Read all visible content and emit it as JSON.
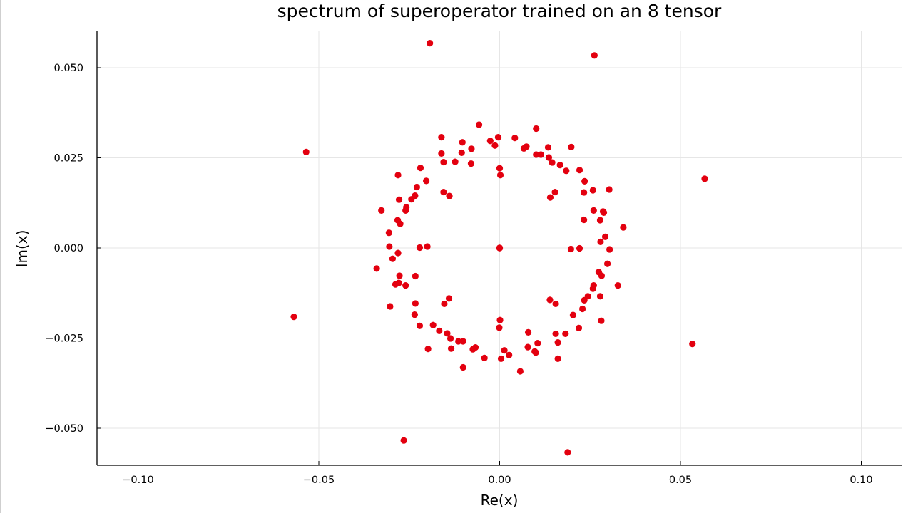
{
  "chart_data": {
    "type": "scatter",
    "title": "spectrum of superoperator trained on an 8 tensor",
    "xlabel": "Re(x)",
    "ylabel": "Im(x)",
    "xlim": [
      -0.1117,
      0.1117
    ],
    "ylim": [
      -0.0603,
      0.0603
    ],
    "x_ticks": [
      -0.1,
      -0.05,
      0.0,
      0.05,
      0.1
    ],
    "x_tick_labels": [
      "−0.10",
      "−0.05",
      "0.00",
      "0.05",
      "0.10"
    ],
    "y_ticks": [
      -0.05,
      -0.025,
      0.0,
      0.025,
      0.05
    ],
    "y_tick_labels": [
      "−0.050",
      "−0.025",
      "0.000",
      "0.025",
      "0.050"
    ],
    "grid": true,
    "legend": "none",
    "marker_color": "#e3000f",
    "series": [
      {
        "points": [
          [
            -0.0193,
            0.0568
          ],
          [
            0.0262,
            0.0534
          ],
          [
            0.0567,
            0.0192
          ],
          [
            -0.0535,
            0.0266
          ],
          [
            0.0533,
            -0.0266
          ],
          [
            -0.0569,
            -0.0191
          ],
          [
            -0.0265,
            -0.0534
          ],
          [
            0.0188,
            -0.0567
          ],
          [
            0.0,
            0.0
          ],
          [
            0.0,
            0.0
          ],
          [
            0.0,
            0.0
          ],
          [
            0.0,
            0.0
          ],
          [
            -0.0057,
            0.0342
          ],
          [
            0.0101,
            0.0331
          ],
          [
            0.0042,
            0.0305
          ],
          [
            -0.0004,
            0.0307
          ],
          [
            -0.0161,
            0.0307
          ],
          [
            -0.0026,
            0.0297
          ],
          [
            -0.0103,
            0.0293
          ],
          [
            -0.0013,
            0.0284
          ],
          [
            0.0067,
            0.0276
          ],
          [
            0.0074,
            0.0281
          ],
          [
            0.0134,
            0.0279
          ],
          [
            0.0198,
            0.028
          ],
          [
            -0.0078,
            0.0275
          ],
          [
            -0.0161,
            0.0262
          ],
          [
            -0.0105,
            0.0264
          ],
          [
            0.0101,
            0.0259
          ],
          [
            0.0114,
            0.0259
          ],
          [
            0.0136,
            0.0251
          ],
          [
            -0.0123,
            0.0239
          ],
          [
            -0.0155,
            0.0238
          ],
          [
            -0.0079,
            0.0234
          ],
          [
            0.0145,
            0.0237
          ],
          [
            0.0167,
            0.023
          ],
          [
            0.0184,
            0.0214
          ],
          [
            0.0221,
            0.0216
          ],
          [
            -0.0219,
            0.0222
          ],
          [
            -0.0281,
            0.0202
          ],
          [
            -0.0203,
            0.0186
          ],
          [
            0.0235,
            0.0185
          ],
          [
            -0.0229,
            0.0169
          ],
          [
            0.0303,
            0.0162
          ],
          [
            0.0258,
            0.016
          ],
          [
            0.0153,
            0.0155
          ],
          [
            -0.0155,
            0.0155
          ],
          [
            -0.0139,
            0.0144
          ],
          [
            0.014,
            0.014
          ],
          [
            0.0233,
            0.0154
          ],
          [
            -0.0234,
            0.0145
          ],
          [
            -0.0278,
            0.0134
          ],
          [
            -0.0244,
            0.0135
          ],
          [
            -0.0258,
            0.0113
          ],
          [
            -0.026,
            0.0104
          ],
          [
            -0.0327,
            0.0104
          ],
          [
            0.026,
            0.0104
          ],
          [
            0.0288,
            0.0098
          ],
          [
            0.0286,
            0.0101
          ],
          [
            0.0278,
            0.0077
          ],
          [
            0.0233,
            0.0078
          ],
          [
            -0.0282,
            0.0077
          ],
          [
            -0.0275,
            0.0067
          ],
          [
            0.0342,
            0.0057
          ],
          [
            -0.0306,
            0.0042
          ],
          [
            0.0292,
            0.0031
          ],
          [
            0.0279,
            0.0017
          ],
          [
            -0.0305,
            0.0004
          ],
          [
            -0.02,
            0.0004
          ],
          [
            -0.0221,
            0.0001
          ],
          [
            0.0221,
            -0.0001
          ],
          [
            0.0197,
            -0.0003
          ],
          [
            0.0304,
            -0.0004
          ],
          [
            -0.0281,
            -0.0014
          ],
          [
            -0.0296,
            -0.003
          ],
          [
            0.0,
            0.0221
          ],
          [
            0.0002,
            0.0202
          ],
          [
            0.0001,
            -0.02
          ],
          [
            -0.0001,
            -0.0221
          ],
          [
            0.0298,
            -0.0044
          ],
          [
            -0.034,
            -0.0057
          ],
          [
            0.0274,
            -0.0067
          ],
          [
            -0.0277,
            -0.0077
          ],
          [
            0.0282,
            -0.0077
          ],
          [
            -0.0233,
            -0.0078
          ],
          [
            -0.0279,
            -0.0097
          ],
          [
            -0.0288,
            -0.0101
          ],
          [
            -0.026,
            -0.0104
          ],
          [
            0.026,
            -0.0104
          ],
          [
            0.0327,
            -0.0104
          ],
          [
            0.0258,
            -0.0113
          ],
          [
            0.0278,
            -0.0134
          ],
          [
            0.0244,
            -0.0134
          ],
          [
            0.0139,
            -0.0144
          ],
          [
            -0.014,
            -0.014
          ],
          [
            -0.0233,
            -0.0154
          ],
          [
            -0.0303,
            -0.0162
          ],
          [
            -0.0153,
            -0.0155
          ],
          [
            0.0234,
            -0.0145
          ],
          [
            0.0155,
            -0.0155
          ],
          [
            0.0229,
            -0.0169
          ],
          [
            -0.0235,
            -0.0185
          ],
          [
            0.0203,
            -0.0186
          ],
          [
            0.0281,
            -0.0202
          ],
          [
            -0.0221,
            -0.0216
          ],
          [
            -0.0184,
            -0.0214
          ],
          [
            0.0219,
            -0.0222
          ],
          [
            -0.0167,
            -0.023
          ],
          [
            -0.0145,
            -0.0237
          ],
          [
            0.0079,
            -0.0234
          ],
          [
            0.0155,
            -0.0238
          ],
          [
            0.0182,
            -0.0238
          ],
          [
            -0.0136,
            -0.0251
          ],
          [
            -0.0114,
            -0.0259
          ],
          [
            -0.0101,
            -0.0259
          ],
          [
            0.0161,
            -0.0262
          ],
          [
            0.0105,
            -0.0264
          ],
          [
            0.0078,
            -0.0275
          ],
          [
            -0.0074,
            -0.0281
          ],
          [
            -0.0067,
            -0.0276
          ],
          [
            -0.0198,
            -0.028
          ],
          [
            -0.0134,
            -0.0279
          ],
          [
            0.0013,
            -0.0284
          ],
          [
            0.01,
            -0.029
          ],
          [
            0.0097,
            -0.0287
          ],
          [
            0.0026,
            -0.0297
          ],
          [
            -0.0042,
            -0.0305
          ],
          [
            0.0004,
            -0.0307
          ],
          [
            0.0161,
            -0.0307
          ],
          [
            -0.0101,
            -0.0331
          ],
          [
            0.0057,
            -0.0342
          ]
        ]
      }
    ]
  }
}
